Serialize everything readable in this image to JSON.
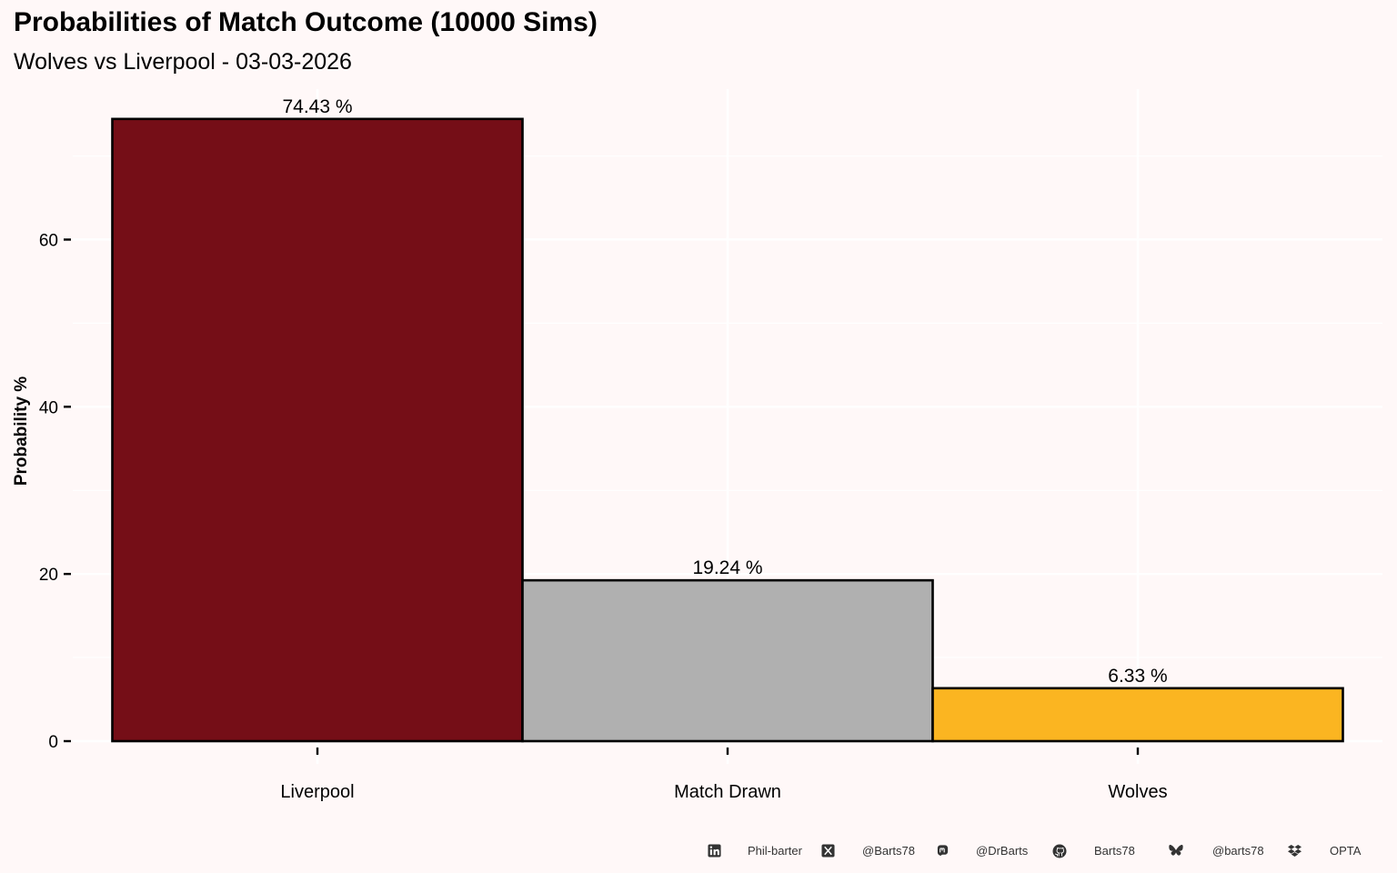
{
  "title": "Probabilities of Match Outcome (10000 Sims)",
  "subtitle": "Wolves vs Liverpool - 03-03-2026",
  "chart_data": {
    "type": "bar",
    "categories": [
      "Liverpool",
      "Match Drawn",
      "Wolves"
    ],
    "values": [
      74.43,
      19.24,
      6.33
    ],
    "data_labels": [
      "74.43  %",
      "19.24  %",
      "6.33  %"
    ],
    "colors": [
      "#750E17",
      "#B0B0B0",
      "#FBB521"
    ],
    "xlabel": "",
    "ylabel": "Probability %",
    "ylim": [
      0,
      78
    ],
    "yticks": [
      0,
      20,
      40,
      60
    ],
    "grid": true,
    "legend": "none"
  },
  "footer": {
    "items": [
      {
        "icon": "linkedin-icon",
        "label": "Phil-barter"
      },
      {
        "icon": "x-twitter-icon",
        "label": "@Barts78"
      },
      {
        "icon": "mastodon-icon",
        "label": "@DrBarts"
      },
      {
        "icon": "github-icon",
        "label": "Barts78"
      },
      {
        "icon": "bluesky-icon",
        "label": "@barts78"
      },
      {
        "icon": "dropbox-icon",
        "label": "OPTA"
      }
    ]
  }
}
